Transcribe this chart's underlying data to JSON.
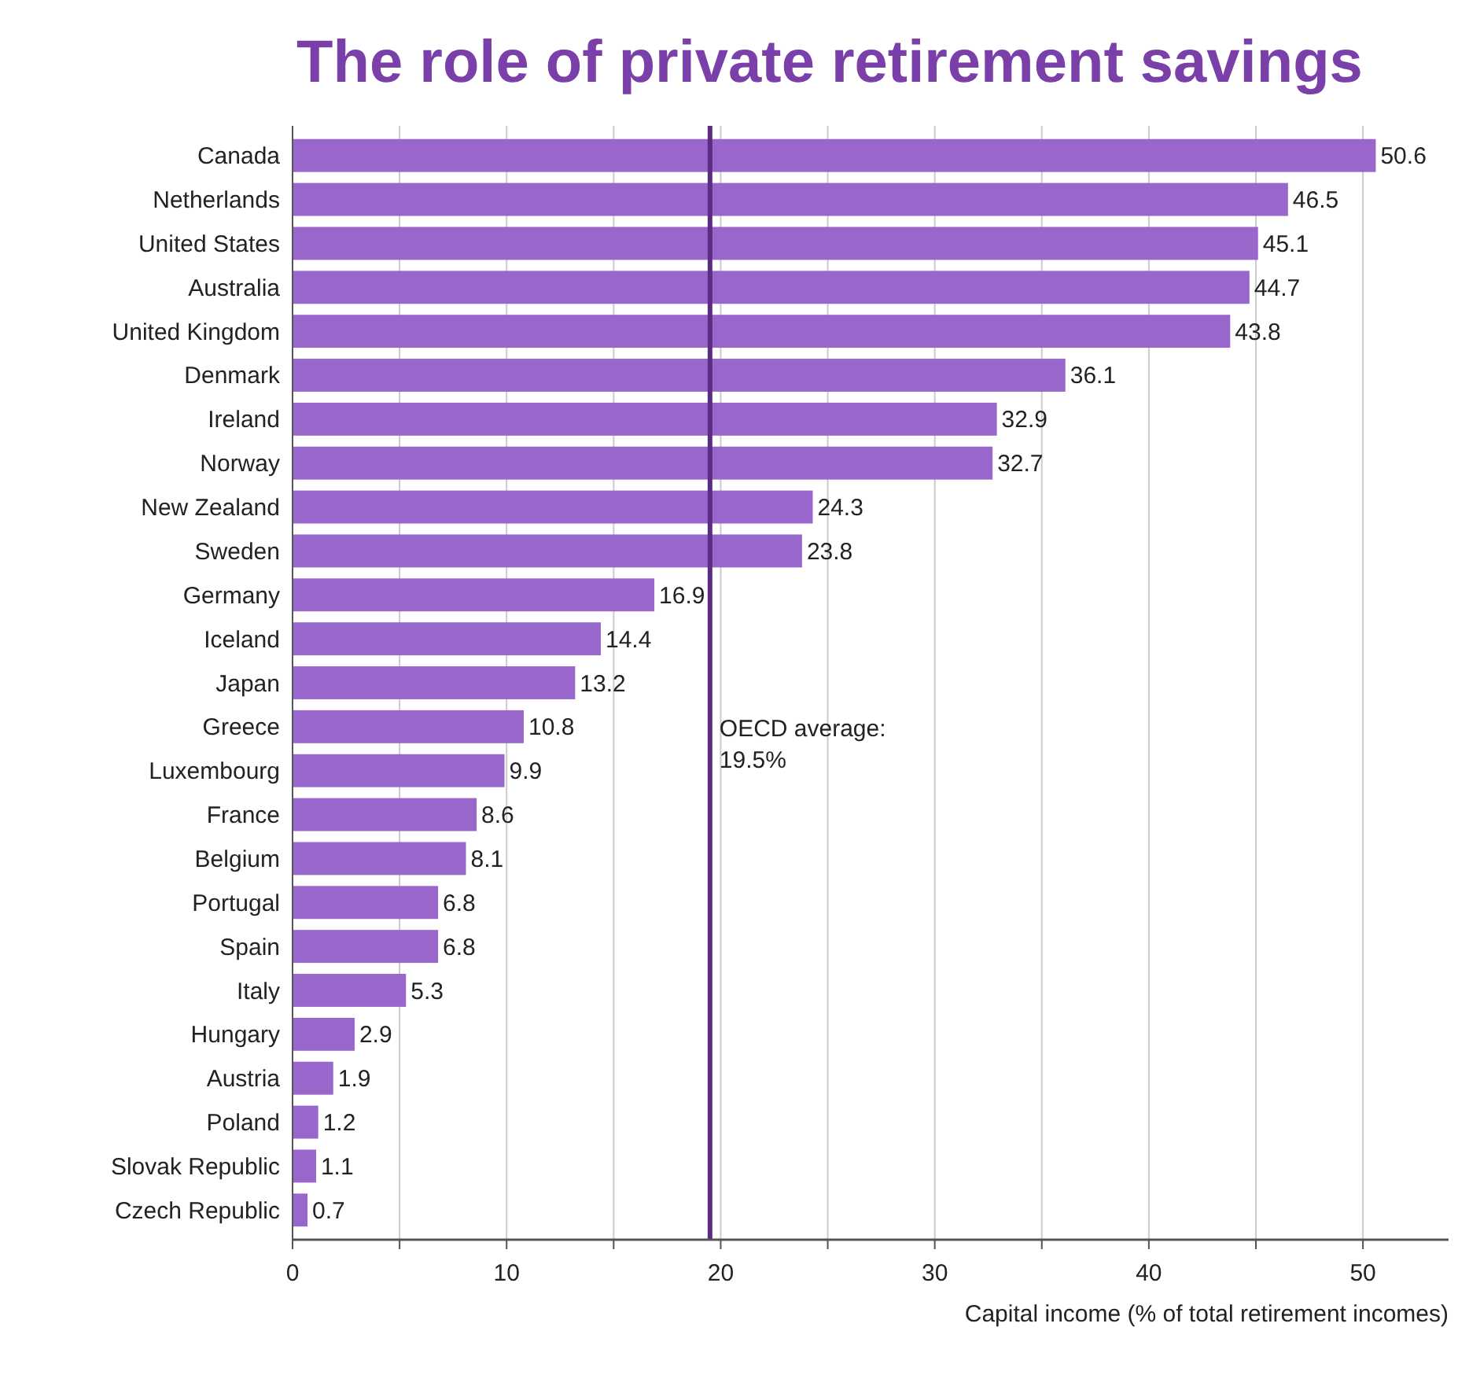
{
  "chart_data": {
    "type": "bar",
    "orientation": "horizontal",
    "title": "The role of private retirement savings",
    "xlabel": "Capital income (% of total retirement incomes)",
    "categories": [
      "Canada",
      "Netherlands",
      "United States",
      "Australia",
      "United Kingdom",
      "Denmark",
      "Ireland",
      "Norway",
      "New Zealand",
      "Sweden",
      "Germany",
      "Iceland",
      "Japan",
      "Greece",
      "Luxembourg",
      "France",
      "Belgium",
      "Portugal",
      "Spain",
      "Italy",
      "Hungary",
      "Austria",
      "Poland",
      "Slovak Republic",
      "Czech Republic"
    ],
    "values": [
      50.6,
      46.5,
      45.1,
      44.7,
      43.8,
      36.1,
      32.9,
      32.7,
      24.3,
      23.8,
      16.9,
      14.4,
      13.2,
      10.8,
      9.9,
      8.6,
      8.1,
      6.8,
      6.8,
      5.3,
      2.9,
      1.9,
      1.2,
      1.1,
      0.7
    ],
    "color": "#9966cc",
    "data_labels": true,
    "grid": "x",
    "xlim": [
      0,
      54
    ],
    "xticks": [
      0,
      {
        "value": 5,
        "label": null
      },
      10,
      {
        "value": 15,
        "label": null
      },
      20,
      {
        "value": 25,
        "label": null
      },
      30,
      {
        "value": 35,
        "label": null
      },
      40,
      {
        "value": 45,
        "label": null
      },
      50
    ],
    "ref_lines": [
      {
        "axis": "x",
        "value": 19.5,
        "label": "OECD average: 19.5%",
        "color": "#5b2d82"
      }
    ]
  }
}
